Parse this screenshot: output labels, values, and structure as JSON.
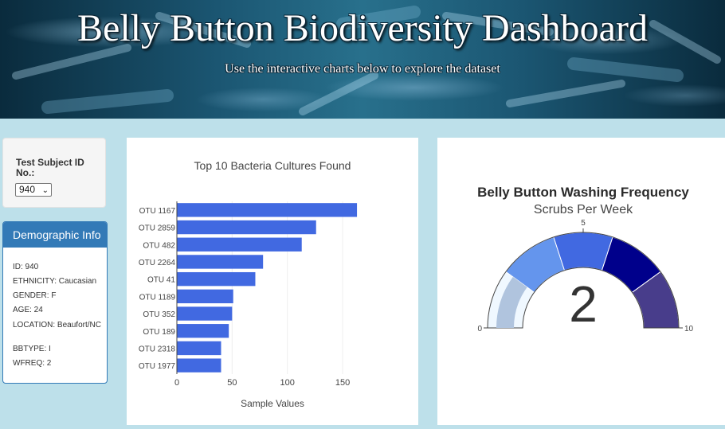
{
  "header": {
    "title": "Belly Button Biodiversity Dashboard",
    "subtitle": "Use the interactive charts below to explore the dataset"
  },
  "selector": {
    "label": "Test Subject ID No.:",
    "selected": "940"
  },
  "demographics": {
    "heading": "Demographic Info",
    "lines": [
      "ID: 940",
      "ETHNICITY: Caucasian",
      "GENDER: F",
      "AGE: 24",
      "LOCATION: Beaufort/NC",
      "BBTYPE: I",
      "WFREQ: 2"
    ]
  },
  "chart_data": [
    {
      "type": "bar",
      "orientation": "horizontal",
      "title": "Top 10 Bacteria Cultures Found",
      "xlabel": "Sample Values",
      "ylabel": "",
      "categories": [
        "OTU 1167",
        "OTU 2859",
        "OTU 482",
        "OTU 2264",
        "OTU 41",
        "OTU 1189",
        "OTU 352",
        "OTU 189",
        "OTU 2318",
        "OTU 1977"
      ],
      "values": [
        163,
        126,
        113,
        78,
        71,
        51,
        50,
        47,
        40,
        40
      ],
      "xlim": [
        0,
        168
      ],
      "xticks": [
        0,
        50,
        100,
        150
      ],
      "bar_color": "#4169e1",
      "grid": true
    },
    {
      "type": "gauge",
      "title": "Belly Button Washing Frequency",
      "subtitle": "Scrubs Per Week",
      "value": 2,
      "range": [
        0,
        10
      ],
      "ticks": [
        0,
        5,
        10
      ],
      "bands": [
        {
          "from": 0,
          "to": 2,
          "color": "#f0f8ff"
        },
        {
          "from": 2,
          "to": 4,
          "color": "#6495ed"
        },
        {
          "from": 4,
          "to": 6,
          "color": "#4169e1"
        },
        {
          "from": 6,
          "to": 8,
          "color": "#00008b"
        },
        {
          "from": 8,
          "to": 10,
          "color": "#483d8b"
        }
      ],
      "bar_color": "#b0c4de"
    }
  ]
}
